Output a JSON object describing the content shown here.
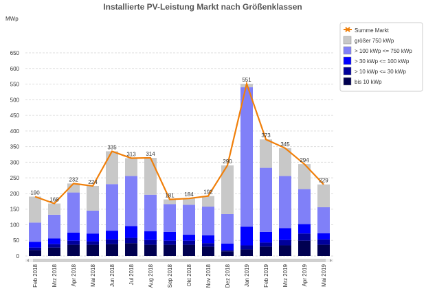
{
  "chart_data": {
    "type": "bar",
    "stacked": true,
    "title": "Installierte PV-Leistung Markt nach Größenklassen",
    "ylabel": "MWp",
    "ylim": [
      0,
      650
    ],
    "ytick_step": 50,
    "grid": true,
    "legend_position": "top-right",
    "categories": [
      "Feb 2018",
      "Mrz 2018",
      "Apr 2018",
      "Mai 2018",
      "Jun 2018",
      "Jul 2018",
      "Aug 2018",
      "Sep 2018",
      "Okt 2018",
      "Nov 2018",
      "Dez 2018",
      "Jan 2019",
      "Feb 2019",
      "Mrz 2019",
      "Apr 2019",
      "Mai 2019"
    ],
    "series": [
      {
        "name": "bis 10 kWp",
        "color": "#000050",
        "values": [
          19,
          27,
          36,
          36,
          38,
          41,
          36,
          36,
          36,
          30,
          15,
          21,
          30,
          34,
          49,
          36
        ]
      },
      {
        "name": "> 10 kWp <= 30 kWp",
        "color": "#00009a",
        "values": [
          8,
          11,
          13,
          11,
          15,
          17,
          15,
          13,
          13,
          11,
          4,
          13,
          13,
          17,
          23,
          17
        ]
      },
      {
        "name": "> 30 kWp <= 100 kWp",
        "color": "#0000ff",
        "values": [
          18,
          18,
          26,
          25,
          28,
          38,
          28,
          28,
          19,
          25,
          21,
          60,
          34,
          38,
          30,
          20
        ]
      },
      {
        "name": "> 100 kWp <= 750 kWp",
        "color": "#8080f8",
        "values": [
          62,
          76,
          128,
          73,
          149,
          160,
          117,
          89,
          96,
          92,
          94,
          446,
          205,
          167,
          112,
          83
        ]
      },
      {
        "name": "größer 750 kWp",
        "color": "#c8c8c8",
        "values": [
          83,
          36,
          29,
          79,
          105,
          57,
          118,
          15,
          20,
          34,
          156,
          11,
          91,
          89,
          80,
          73
        ]
      }
    ],
    "line": {
      "name": "Summe Markt",
      "color": "#f07f0a",
      "values": [
        190,
        168,
        232,
        224,
        335,
        313,
        314,
        181,
        184,
        192,
        290,
        551,
        373,
        345,
        294,
        229
      ]
    }
  }
}
